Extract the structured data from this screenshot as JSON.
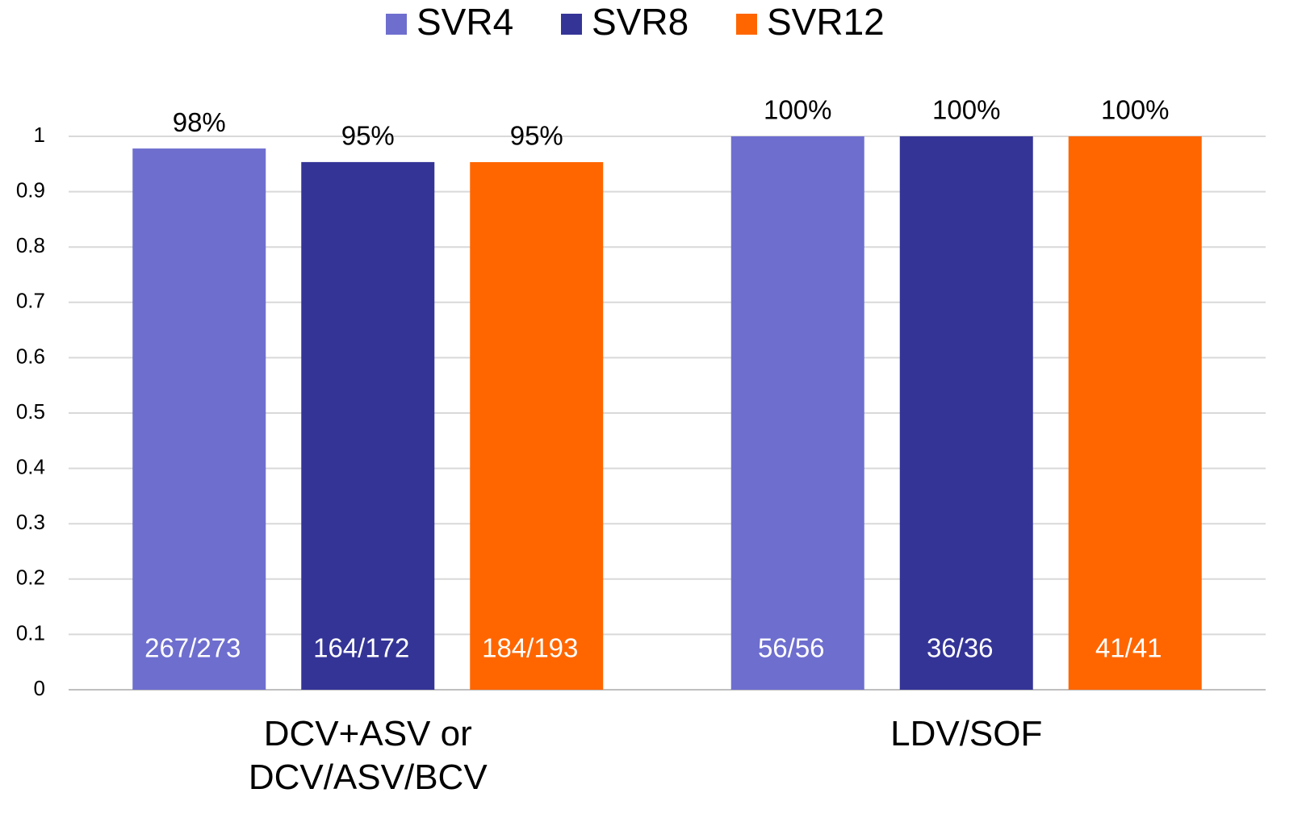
{
  "chart_data": {
    "type": "bar",
    "categories": [
      "DCV+ASV or DCV/ASV/BCV",
      "LDV/SOF"
    ],
    "series": [
      {
        "name": "SVR4",
        "color": "#6e6ecf",
        "values": [
          0.978,
          1
        ],
        "value_labels": [
          "98%",
          "100%"
        ],
        "counts": [
          "267/273",
          "56/56"
        ]
      },
      {
        "name": "SVR8",
        "color": "#343497",
        "values": [
          0.9535,
          1
        ],
        "value_labels": [
          "95%",
          "100%"
        ],
        "counts": [
          "164/172",
          "36/36"
        ]
      },
      {
        "name": "SVR12",
        "color": "#ff6600",
        "values": [
          0.9534,
          1
        ],
        "value_labels": [
          "95%",
          "100%"
        ],
        "counts": [
          "184/193",
          "41/41"
        ]
      }
    ],
    "ylim": [
      0,
      1
    ],
    "yticks": [
      0,
      0.1,
      0.2,
      0.3,
      0.4,
      0.5,
      0.6,
      0.7,
      0.8,
      0.9,
      1
    ],
    "grid": true,
    "legend": "top"
  }
}
